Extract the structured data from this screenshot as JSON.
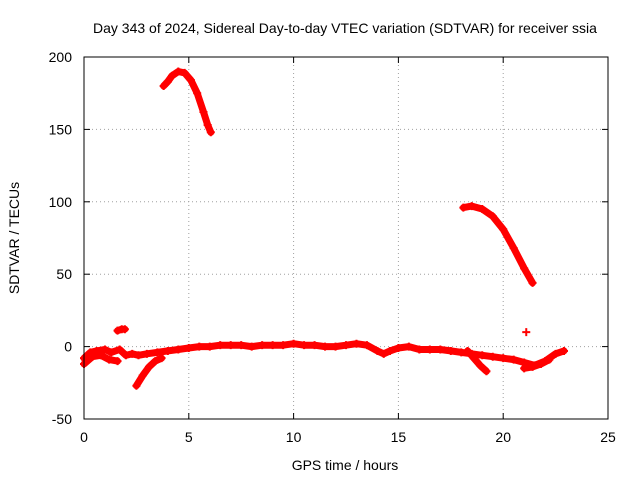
{
  "chart_data": {
    "type": "scatter",
    "title": "Day 343 of 2024, Sidereal Day-to-day VTEC variation (SDTVAR) for receiver ssia",
    "xlabel": "GPS time / hours",
    "ylabel": "SDTVAR / TECUs",
    "xlim": [
      0,
      25
    ],
    "ylim": [
      -50,
      200
    ],
    "xticks": [
      0,
      5,
      10,
      15,
      20,
      25
    ],
    "yticks": [
      -50,
      0,
      50,
      100,
      150,
      200
    ],
    "grid": true,
    "marker": "plus",
    "color": "#ff0000",
    "series": [
      {
        "name": "baseline",
        "points": [
          [
            0,
            -8
          ],
          [
            0.3,
            -4
          ],
          [
            0.6,
            -3
          ],
          [
            1,
            -2
          ],
          [
            1.3,
            -4
          ],
          [
            1.7,
            -2
          ],
          [
            2.0,
            -6
          ],
          [
            2.3,
            -5
          ],
          [
            2.6,
            -6
          ],
          [
            3.0,
            -5
          ],
          [
            3.5,
            -4
          ],
          [
            4.0,
            -3
          ],
          [
            4.5,
            -2
          ],
          [
            5.0,
            -1
          ],
          [
            5.5,
            0
          ],
          [
            6.0,
            0
          ],
          [
            6.5,
            1
          ],
          [
            7.0,
            1
          ],
          [
            7.5,
            1
          ],
          [
            8.0,
            0
          ],
          [
            8.5,
            1
          ],
          [
            9.0,
            1
          ],
          [
            9.5,
            1
          ],
          [
            10.0,
            2
          ],
          [
            10.5,
            1
          ],
          [
            11.0,
            1
          ],
          [
            11.5,
            0
          ],
          [
            12.0,
            0
          ],
          [
            12.5,
            1
          ],
          [
            13.0,
            2
          ],
          [
            13.5,
            1
          ],
          [
            14.0,
            -3
          ],
          [
            14.3,
            -5
          ],
          [
            14.6,
            -3
          ],
          [
            15.0,
            -1
          ],
          [
            15.5,
            0
          ],
          [
            16.0,
            -2
          ],
          [
            16.5,
            -2
          ],
          [
            17.0,
            -2
          ],
          [
            17.5,
            -3
          ],
          [
            18.0,
            -4
          ],
          [
            18.5,
            -5
          ],
          [
            19.0,
            -6
          ],
          [
            19.5,
            -7
          ],
          [
            20.0,
            -8
          ],
          [
            20.5,
            -9
          ],
          [
            21.0,
            -11
          ],
          [
            21.5,
            -13
          ],
          [
            22.0,
            -10
          ],
          [
            22.5,
            -5
          ],
          [
            22.9,
            -3
          ]
        ]
      },
      {
        "name": "baseline-lower",
        "points": [
          [
            0,
            -12
          ],
          [
            0.4,
            -7
          ],
          [
            0.8,
            -6
          ],
          [
            1.2,
            -9
          ],
          [
            1.6,
            -10
          ]
        ]
      },
      {
        "name": "dip-early",
        "points": [
          [
            2.5,
            -27
          ],
          [
            2.8,
            -20
          ],
          [
            3.1,
            -14
          ],
          [
            3.4,
            -10
          ],
          [
            3.7,
            -8
          ]
        ]
      },
      {
        "name": "dip-evening",
        "points": [
          [
            18.3,
            -3
          ],
          [
            18.6,
            -8
          ],
          [
            18.9,
            -13
          ],
          [
            19.2,
            -17
          ]
        ]
      },
      {
        "name": "dip-late",
        "points": [
          [
            21.0,
            -15
          ],
          [
            21.4,
            -14
          ],
          [
            21.8,
            -12
          ],
          [
            22.2,
            -9
          ]
        ]
      },
      {
        "name": "arc-morning",
        "points": [
          [
            3.8,
            180
          ],
          [
            4.0,
            183
          ],
          [
            4.2,
            187
          ],
          [
            4.5,
            190
          ],
          [
            4.8,
            189
          ],
          [
            5.1,
            184
          ],
          [
            5.4,
            175
          ],
          [
            5.7,
            162
          ],
          [
            5.9,
            153
          ],
          [
            6.05,
            148
          ]
        ]
      },
      {
        "name": "arc-evening",
        "points": [
          [
            18.1,
            96
          ],
          [
            18.5,
            97
          ],
          [
            19.0,
            95
          ],
          [
            19.5,
            90
          ],
          [
            20.0,
            81
          ],
          [
            20.5,
            68
          ],
          [
            21.0,
            54
          ],
          [
            21.4,
            44
          ]
        ]
      },
      {
        "name": "blip-1",
        "points": [
          [
            1.6,
            11
          ],
          [
            1.8,
            12
          ],
          [
            1.95,
            12
          ]
        ]
      },
      {
        "name": "blip-2",
        "points": [
          [
            21.1,
            10
          ]
        ]
      }
    ]
  }
}
